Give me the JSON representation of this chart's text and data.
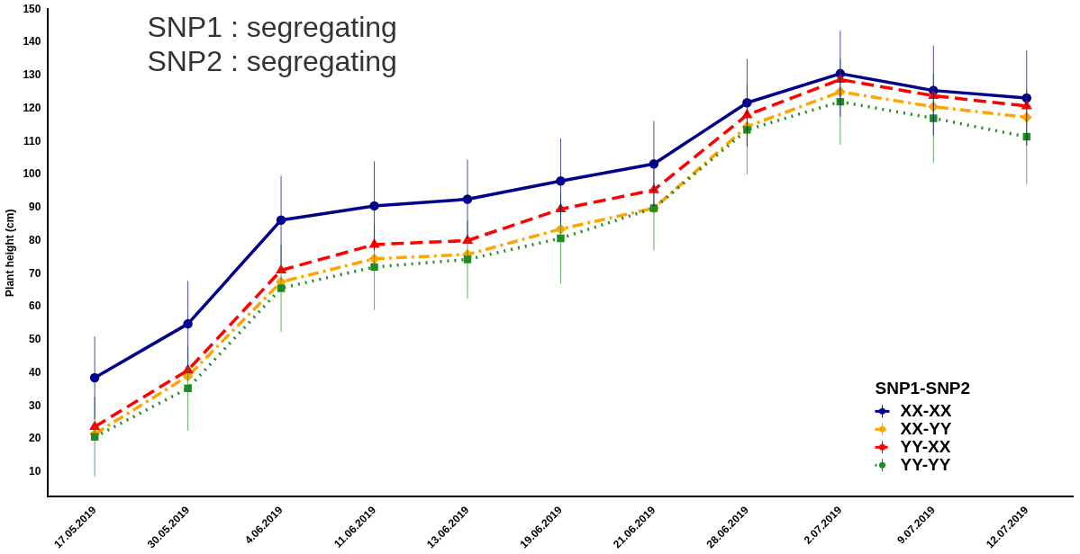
{
  "chart_data": {
    "type": "line",
    "ylabel": "Plant height (cm)",
    "legend_title": "SNP1-SNP2",
    "annotations": [
      "SNP1 : segregating",
      "SNP2 : segregating"
    ],
    "categories": [
      "17.05.2019",
      "30.05.2019",
      "4.06.2019",
      "11.06.2019",
      "13.06.2019",
      "19.06.2019",
      "21.06.2019",
      "28.06.2019",
      "2.07.2019",
      "9.07.2019",
      "12.07.2019"
    ],
    "ylim": [
      2.5,
      150
    ],
    "yticks": [
      10,
      20,
      30,
      40,
      50,
      60,
      70,
      80,
      90,
      100,
      110,
      120,
      130,
      140,
      150
    ],
    "grid": false,
    "legend": "bottom right",
    "series": [
      {
        "name": "XX-XX",
        "color": "#00008b",
        "marker": "circle",
        "line_style": "solid",
        "values": [
          38.5,
          54.8,
          86.2,
          90.5,
          92.5,
          98,
          103.2,
          121.7,
          130.5,
          125.4,
          123.1
        ],
        "errors": [
          12.5,
          13,
          13.4,
          13.5,
          12,
          13,
          13,
          13.3,
          13,
          13.6,
          14.4
        ]
      },
      {
        "name": "XX-YY",
        "color": "#ffa500",
        "marker": "diamond",
        "line_style": "dashdot",
        "values": [
          21.5,
          39,
          67.5,
          74.5,
          75.8,
          83.5,
          89.8,
          114.5,
          125,
          120.5,
          117.3
        ]
      },
      {
        "name": "YY-XX",
        "color": "#ff0000",
        "marker": "triangle",
        "line_style": "dashed",
        "values": [
          23.7,
          40.8,
          71,
          78.8,
          80,
          89.5,
          95.3,
          118,
          128.7,
          123.8,
          120.7
        ]
      },
      {
        "name": "YY-YY",
        "color": "#228b22",
        "marker": "square",
        "line_style": "dotted",
        "values": [
          20.6,
          35.3,
          65.6,
          72,
          74.3,
          80.7,
          89.8,
          113.5,
          122,
          117,
          111.4
        ],
        "errors": [
          12.1,
          12.8,
          13.2,
          13,
          11.8,
          13.7,
          12.8,
          13.5,
          13,
          13.5,
          14.4
        ]
      }
    ]
  }
}
